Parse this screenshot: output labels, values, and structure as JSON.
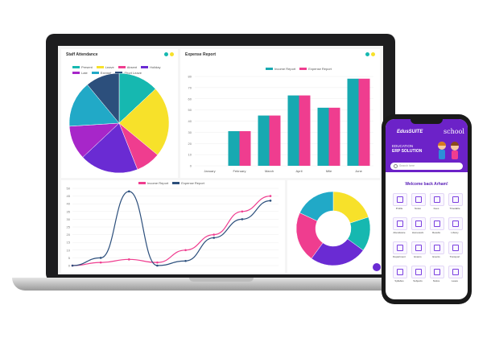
{
  "laptop": {
    "staff_attendance": {
      "title": "Staff Attendance",
      "legend": [
        {
          "label": "Present",
          "color": "#16b8b0"
        },
        {
          "label": "Leave",
          "color": "#f7e12a"
        },
        {
          "label": "Absent",
          "color": "#ef3d8f"
        },
        {
          "label": "Holiday",
          "color": "#6a2bd3"
        },
        {
          "label": "Late",
          "color": "#a726c9"
        },
        {
          "label": "Exempt",
          "color": "#21a9c7"
        },
        {
          "label": "Short Leave",
          "color": "#2c4f7c"
        }
      ]
    },
    "expense_report": {
      "title": "Expense Report",
      "legend": [
        {
          "label": "Income Report",
          "color": "#17a9b1"
        },
        {
          "label": "Expense Report",
          "color": "#ef3d8f"
        }
      ]
    },
    "line_panel": {
      "legend": [
        {
          "label": "Income Report",
          "color": "#ef3d8f"
        },
        {
          "label": "Expense Report",
          "color": "#2c4f7c"
        }
      ]
    }
  },
  "chart_data": [
    {
      "type": "pie",
      "title": "Staff Attendance",
      "categories": [
        "Present",
        "Leave",
        "Absent",
        "Holiday",
        "Late",
        "Exempt",
        "Short Leave"
      ],
      "values": [
        13,
        23,
        8,
        19,
        11,
        15,
        11
      ],
      "colors": [
        "#16b8b0",
        "#f7e12a",
        "#ef3d8f",
        "#6a2bd3",
        "#a726c9",
        "#21a9c7",
        "#2c4f7c"
      ]
    },
    {
      "type": "bar",
      "title": "Expense Report",
      "categories": [
        "January",
        "February",
        "March",
        "April",
        "Mile",
        "June"
      ],
      "ylim": [
        0,
        80
      ],
      "yticks": [
        0,
        10,
        20,
        30,
        40,
        50,
        60,
        70,
        80
      ],
      "series": [
        {
          "name": "Income Report",
          "color": "#17a9b1",
          "values": [
            0,
            31,
            45,
            63,
            52,
            78
          ]
        },
        {
          "name": "Expense Report",
          "color": "#ef3d8f",
          "values": [
            0,
            31,
            45,
            63,
            52,
            78
          ]
        }
      ]
    },
    {
      "type": "line",
      "ylim": [
        0,
        50
      ],
      "yticks": [
        0,
        5,
        10,
        15,
        20,
        25,
        30,
        35,
        40,
        45,
        50
      ],
      "x": [
        0,
        1,
        2,
        3,
        4,
        5,
        6,
        7
      ],
      "series": [
        {
          "name": "Income Report",
          "color": "#ef3d8f",
          "values": [
            0,
            2,
            4,
            2,
            10,
            20,
            35,
            45
          ]
        },
        {
          "name": "Expense Report",
          "color": "#2c4f7c",
          "values": [
            0,
            5,
            48,
            0,
            3,
            18,
            30,
            42
          ]
        }
      ]
    },
    {
      "type": "pie",
      "values": [
        20,
        15,
        25,
        22,
        18
      ],
      "colors": [
        "#f7e12a",
        "#16b8b0",
        "#6a2bd3",
        "#ef3d8f",
        "#21a9c7"
      ],
      "donut": true
    }
  ],
  "phone": {
    "brand": "EdusSUITE",
    "header_line1": "EDUCATION",
    "header_line2": "ERP SOLUTION",
    "logo_text": "school",
    "search_placeholder": "Search here",
    "welcome": "Welcome back Arham!",
    "grid": [
      "Profile",
      "Notes",
      "Fees",
      "Timetable",
      "Attendance",
      "Homework",
      "Results",
      "Library",
      "Department",
      "Exams",
      "Events",
      "Transport",
      "Syllabus",
      "Subjects",
      "Notice",
      "Leave"
    ]
  }
}
